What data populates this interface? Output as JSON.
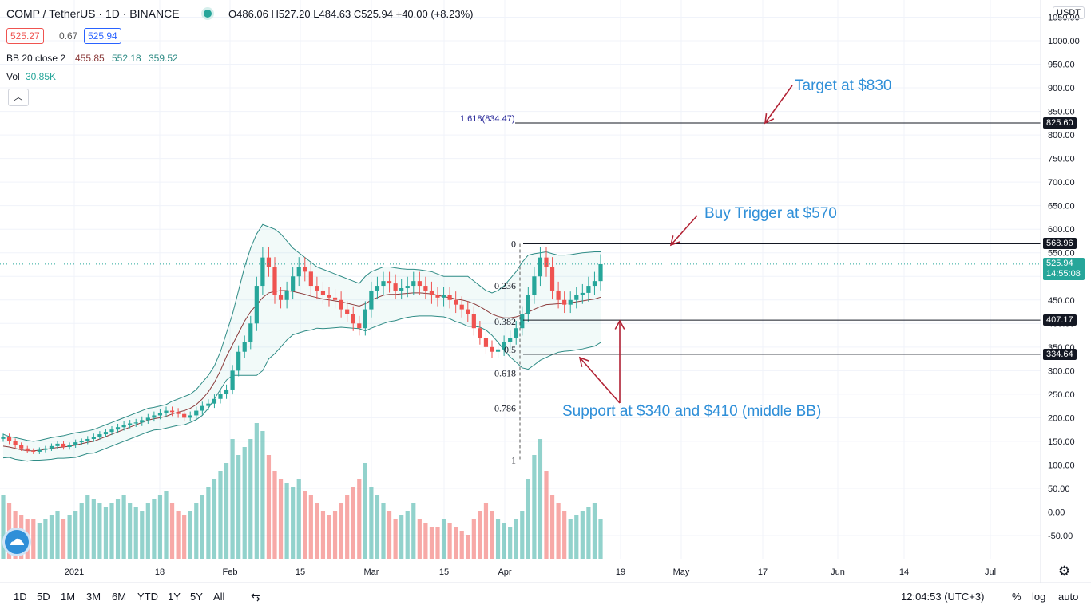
{
  "header": {
    "symbol": "COMP / TetherUS · 1D · BINANCE",
    "ohlc": "O486.06 H527.20 L484.63 C525.94 +40.00 (+8.23%)",
    "bid": "525.27",
    "spread": "0.67",
    "ask": "525.94",
    "bb_label": "BB 20 close 2",
    "bb_basis": "455.85",
    "bb_upper": "552.18",
    "bb_lower": "359.52",
    "vol_label": "Vol",
    "vol_value": "30.85K",
    "currency": "USDT"
  },
  "colors": {
    "up": "#26a69a",
    "down": "#ef5350",
    "bb": "#2e8b85",
    "basis": "#8b3b3b",
    "arrow": "#b22234",
    "annotation": "#2f8fd8",
    "fib": "#2a2a9a"
  },
  "annotations": {
    "target": "Target at $830",
    "buy": "Buy Trigger at $570",
    "support": "Support at $340 and $410 (middle BB)",
    "fib_ext": "1.618(834.47)"
  },
  "price_labels": {
    "target_line": "825.60",
    "buy_line": "568.96",
    "current": "525.94",
    "countdown": "14:55:08",
    "mid_line": "407.17",
    "low_line": "334.64"
  },
  "bottom_toolbar": {
    "timeframes": [
      "1D",
      "5D",
      "1M",
      "3M",
      "6M",
      "YTD",
      "1Y",
      "5Y",
      "All"
    ],
    "clock": "12:04:53 (UTC+3)",
    "percent": "%",
    "log": "log",
    "auto": "auto"
  },
  "chart_data": {
    "type": "candlestick",
    "y_axis_ticks": [
      "1050.00",
      "1000.00",
      "950.00",
      "900.00",
      "850.00",
      "800.00",
      "750.00",
      "700.00",
      "650.00",
      "600.00",
      "550.00",
      "500.00",
      "450.00",
      "400.00",
      "350.00",
      "300.00",
      "250.00",
      "200.00",
      "150.00",
      "100.00",
      "50.00",
      "0.00",
      "-50.00"
    ],
    "x_axis_ticks": [
      "2021",
      "18",
      "Feb",
      "15",
      "Mar",
      "15",
      "Apr",
      "19",
      "May",
      "17",
      "Jun",
      "14",
      "Jul"
    ],
    "fib_levels": [
      {
        "label": "0",
        "value": 569
      },
      {
        "label": "0.236",
        "value": 480
      },
      {
        "label": "0.382",
        "value": 404
      },
      {
        "label": "0.5",
        "value": 345
      },
      {
        "label": "0.618",
        "value": 295
      },
      {
        "label": "0.786",
        "value": 220
      },
      {
        "label": "1",
        "value": 110
      }
    ],
    "horizontal_lines": [
      834.47,
      568.96,
      407.17,
      334.64
    ],
    "closes": [
      160,
      150,
      142,
      135,
      130,
      128,
      132,
      135,
      140,
      145,
      138,
      142,
      148,
      150,
      155,
      160,
      165,
      170,
      175,
      180,
      185,
      188,
      190,
      195,
      200,
      205,
      210,
      215,
      212,
      208,
      200,
      205,
      215,
      225,
      230,
      240,
      250,
      260,
      300,
      340,
      360,
      400,
      480,
      540,
      520,
      460,
      450,
      470,
      500,
      520,
      510,
      480,
      470,
      460,
      455,
      450,
      430,
      420,
      400,
      390,
      430,
      470,
      480,
      490,
      485,
      470,
      475,
      480,
      490,
      480,
      470,
      460,
      455,
      460,
      450,
      440,
      430,
      420,
      390,
      370,
      350,
      340,
      345,
      360,
      370,
      390,
      420,
      460,
      500,
      540,
      520,
      470,
      450,
      440,
      450,
      460,
      465,
      480,
      490,
      525.94
    ],
    "volumes": [
      80,
      70,
      60,
      55,
      50,
      50,
      45,
      50,
      55,
      60,
      50,
      55,
      60,
      70,
      80,
      75,
      70,
      65,
      70,
      75,
      80,
      70,
      65,
      60,
      70,
      75,
      80,
      85,
      70,
      60,
      55,
      60,
      70,
      80,
      90,
      100,
      110,
      120,
      150,
      130,
      140,
      150,
      170,
      160,
      130,
      110,
      100,
      95,
      90,
      100,
      85,
      80,
      70,
      60,
      55,
      60,
      70,
      80,
      90,
      100,
      120,
      90,
      80,
      70,
      60,
      50,
      55,
      60,
      70,
      50,
      45,
      40,
      40,
      50,
      45,
      40,
      35,
      30,
      50,
      60,
      70,
      60,
      50,
      45,
      40,
      50,
      60,
      100,
      130,
      150,
      110,
      80,
      70,
      60,
      50,
      55,
      60,
      65,
      70,
      50
    ],
    "bb_upper": [
      165,
      160,
      158,
      155,
      152,
      150,
      152,
      155,
      158,
      160,
      162,
      165,
      168,
      170,
      172,
      175,
      180,
      185,
      190,
      195,
      200,
      205,
      210,
      215,
      220,
      222,
      225,
      228,
      235,
      240,
      245,
      250,
      260,
      275,
      290,
      310,
      340,
      380,
      420,
      470,
      520,
      560,
      590,
      610,
      605,
      600,
      590,
      575,
      560,
      550,
      540,
      530,
      520,
      515,
      510,
      505,
      500,
      495,
      490,
      485,
      500,
      510,
      515,
      520,
      520,
      518,
      516,
      515,
      515,
      514,
      512,
      510,
      505,
      500,
      500,
      500,
      500,
      500,
      490,
      480,
      470,
      465,
      470,
      480,
      495,
      510,
      530,
      545,
      548,
      550,
      552,
      548,
      545,
      545,
      546,
      548,
      550,
      551,
      552,
      552.18
    ],
    "bb_basis": [
      140,
      138,
      135,
      132,
      130,
      130,
      131,
      133,
      135,
      137,
      138,
      140,
      142,
      145,
      148,
      150,
      155,
      160,
      165,
      170,
      175,
      180,
      185,
      190,
      195,
      198,
      200,
      203,
      208,
      212,
      215,
      220,
      228,
      240,
      255,
      275,
      300,
      330,
      355,
      380,
      405,
      425,
      440,
      455,
      465,
      468,
      470,
      470,
      468,
      465,
      462,
      458,
      455,
      452,
      450,
      448,
      446,
      443,
      440,
      437,
      442,
      450,
      455,
      460,
      462,
      462,
      463,
      464,
      465,
      465,
      464,
      463,
      460,
      457,
      455,
      452,
      450,
      447,
      442,
      436,
      428,
      420,
      415,
      412,
      412,
      414,
      418,
      424,
      430,
      436,
      440,
      441,
      442,
      443,
      444,
      446,
      448,
      450,
      452,
      455.85
    ],
    "bb_lower": [
      115,
      116,
      112,
      110,
      108,
      110,
      110,
      111,
      112,
      114,
      114,
      115,
      116,
      120,
      124,
      125,
      130,
      135,
      140,
      145,
      150,
      155,
      160,
      165,
      170,
      174,
      175,
      178,
      181,
      184,
      185,
      190,
      196,
      205,
      220,
      240,
      260,
      280,
      290,
      290,
      290,
      290,
      290,
      300,
      325,
      336,
      350,
      365,
      376,
      380,
      384,
      386,
      390,
      389,
      390,
      391,
      392,
      391,
      390,
      389,
      384,
      390,
      395,
      400,
      404,
      406,
      410,
      413,
      415,
      416,
      416,
      416,
      415,
      414,
      410,
      404,
      400,
      394,
      394,
      392,
      386,
      375,
      360,
      344,
      329,
      318,
      306,
      303,
      312,
      322,
      328,
      334,
      339,
      341,
      342,
      344,
      346,
      349,
      352,
      359.52
    ]
  }
}
